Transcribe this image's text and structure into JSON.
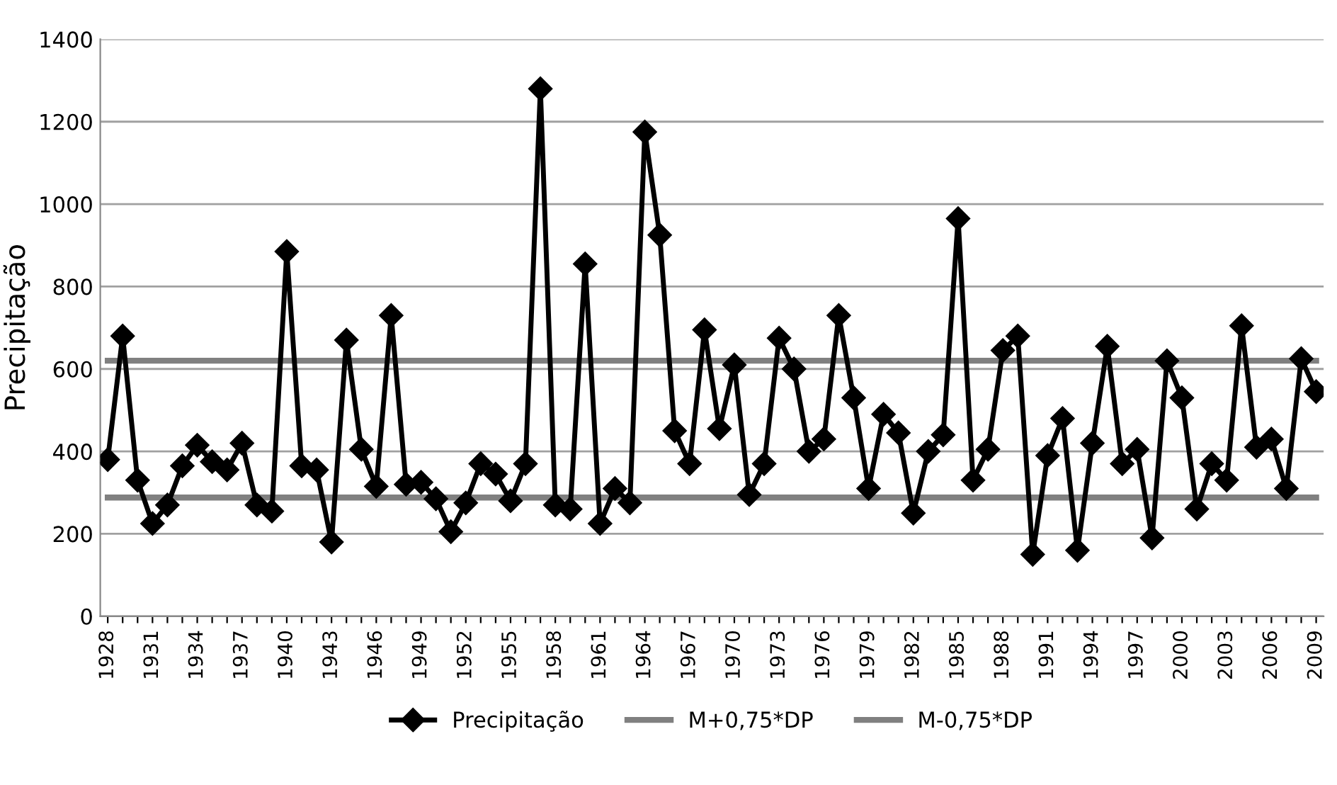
{
  "chart_data": {
    "type": "line",
    "ylabel": "Precipitação",
    "categories": [
      "1928",
      null,
      null,
      "1931",
      null,
      null,
      "1934",
      null,
      null,
      "1937",
      null,
      null,
      "1940",
      null,
      null,
      "1943",
      null,
      null,
      "1946",
      null,
      null,
      "1949",
      null,
      null,
      "1952",
      null,
      null,
      "1955",
      null,
      null,
      "1958",
      null,
      null,
      "1961",
      null,
      null,
      "1964",
      null,
      null,
      "1967",
      null,
      null,
      "1970",
      null,
      null,
      "1973",
      null,
      null,
      "1976",
      null,
      null,
      "1979",
      null,
      null,
      "1982",
      null,
      null,
      "1985",
      null,
      null,
      "1988",
      null,
      null,
      "1991",
      null,
      null,
      "1994",
      null,
      null,
      "1997",
      null,
      null,
      "2000",
      null,
      null,
      "2003",
      null,
      null,
      "2006",
      null,
      null,
      "2009"
    ],
    "series": [
      {
        "name": "Precipitação",
        "color": "#000000",
        "marker": "diamond",
        "values": [
          380,
          680,
          330,
          225,
          270,
          365,
          415,
          375,
          355,
          420,
          270,
          255,
          885,
          365,
          355,
          180,
          670,
          405,
          315,
          730,
          320,
          325,
          285,
          205,
          275,
          370,
          345,
          280,
          370,
          1280,
          270,
          260,
          855,
          225,
          310,
          275,
          1175,
          925,
          450,
          370,
          695,
          455,
          610,
          295,
          370,
          675,
          600,
          400,
          430,
          730,
          530,
          310,
          490,
          445,
          250,
          400,
          440,
          965,
          330,
          405,
          645,
          680,
          150,
          390,
          480,
          160,
          420,
          655,
          370,
          405,
          190,
          620,
          530,
          260,
          370,
          330,
          705,
          410,
          430,
          310,
          625,
          545
        ]
      },
      {
        "name": "M+0,75*DP",
        "color": "#808080",
        "marker": "none",
        "values": [
          620,
          620,
          620,
          620,
          620,
          620,
          620,
          620,
          620,
          620,
          620,
          620,
          620,
          620,
          620,
          620,
          620,
          620,
          620,
          620,
          620,
          620,
          620,
          620,
          620,
          620,
          620,
          620,
          620,
          620,
          620,
          620,
          620,
          620,
          620,
          620,
          620,
          620,
          620,
          620,
          620,
          620,
          620,
          620,
          620,
          620,
          620,
          620,
          620,
          620,
          620,
          620,
          620,
          620,
          620,
          620,
          620,
          620,
          620,
          620,
          620,
          620,
          620,
          620,
          620,
          620,
          620,
          620,
          620,
          620,
          620,
          620,
          620,
          620,
          620,
          620,
          620,
          620,
          620,
          620,
          620,
          620
        ]
      },
      {
        "name": "M-0,75*DP",
        "color": "#808080",
        "marker": "none",
        "values": [
          288,
          288,
          288,
          288,
          288,
          288,
          288,
          288,
          288,
          288,
          288,
          288,
          288,
          288,
          288,
          288,
          288,
          288,
          288,
          288,
          288,
          288,
          288,
          288,
          288,
          288,
          288,
          288,
          288,
          288,
          288,
          288,
          288,
          288,
          288,
          288,
          288,
          288,
          288,
          288,
          288,
          288,
          288,
          288,
          288,
          288,
          288,
          288,
          288,
          288,
          288,
          288,
          288,
          288,
          288,
          288,
          288,
          288,
          288,
          288,
          288,
          288,
          288,
          288,
          288,
          288,
          288,
          288,
          288,
          288,
          288,
          288,
          288,
          288,
          288,
          288,
          288,
          288,
          288,
          288,
          288,
          288
        ]
      }
    ],
    "ylim": [
      0,
      1400
    ],
    "yticks": [
      0,
      200,
      400,
      600,
      800,
      1000,
      1200,
      1400
    ],
    "grid": "y",
    "legend": "bottom",
    "line_style": "solid"
  }
}
